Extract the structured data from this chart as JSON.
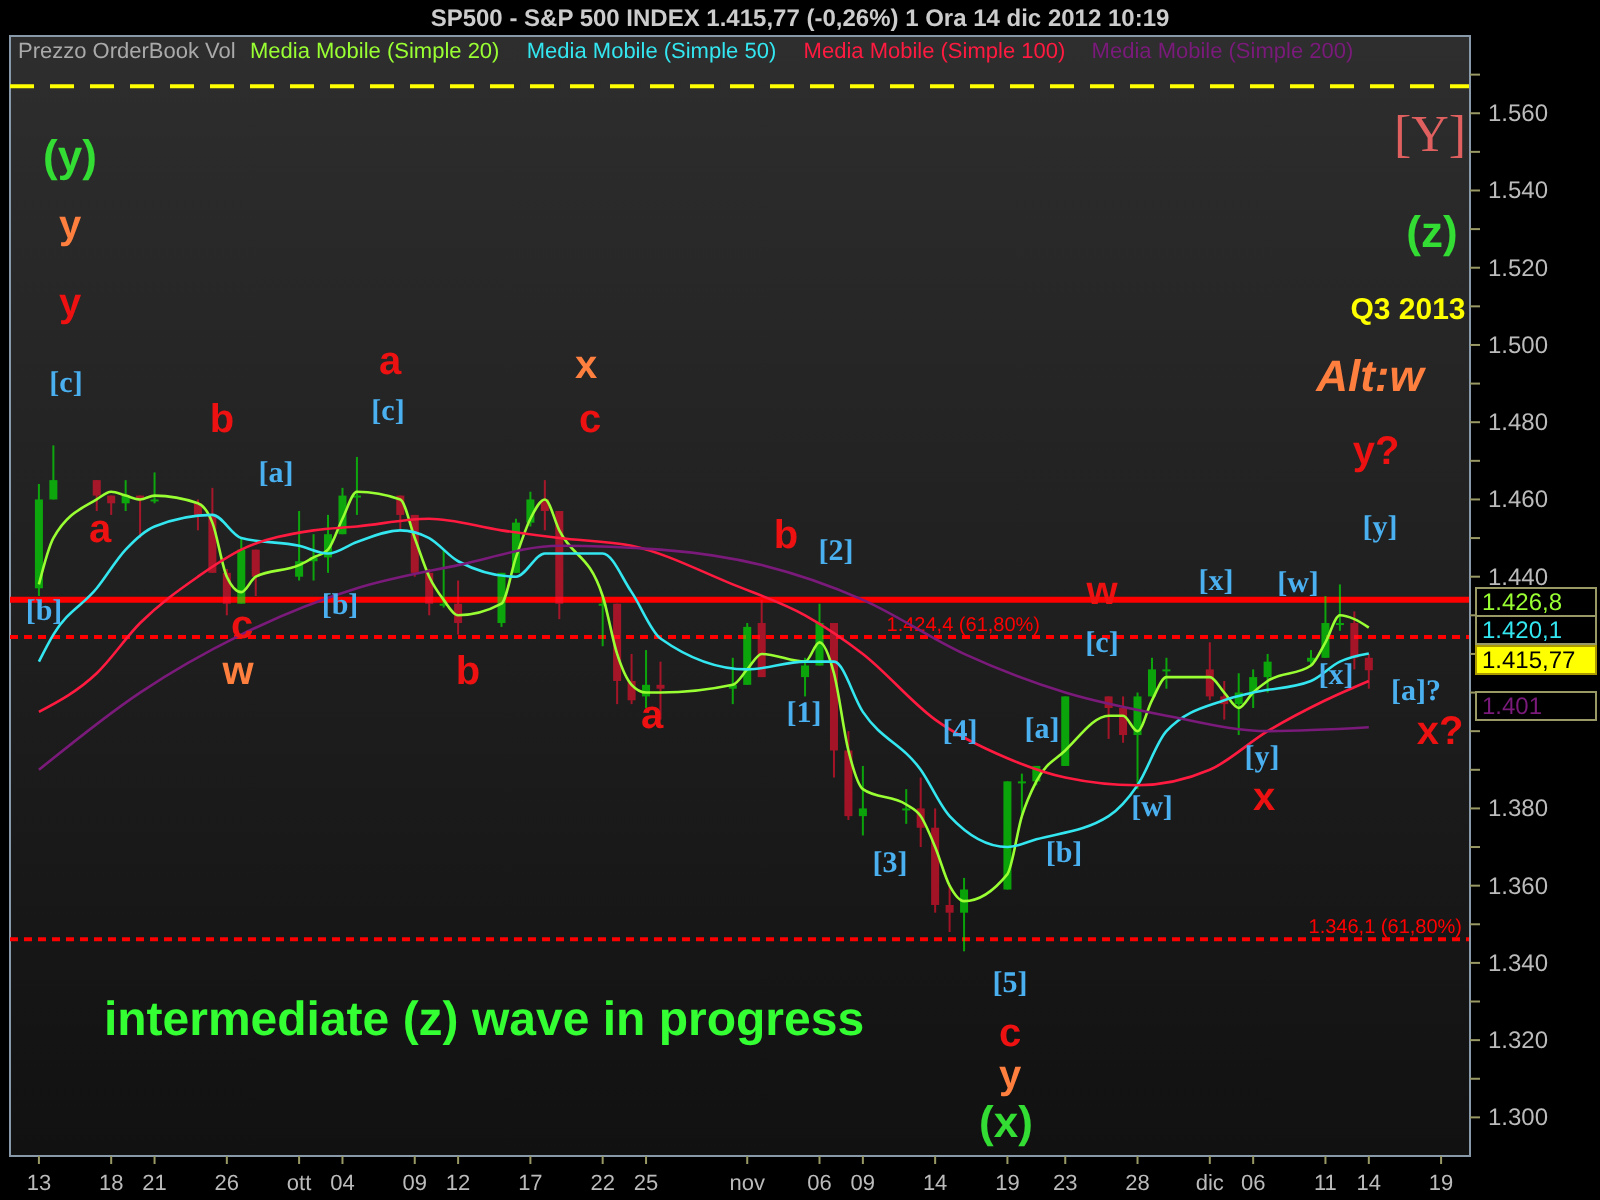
{
  "chart_data": {
    "type": "candlestick",
    "title": "SP500 - S&P 500 INDEX    1.415,77 (-0,26%)    1 Ora  14 dic 2012 10:19",
    "legend_title": "Prezzo OrderBook Vol",
    "legend": "top",
    "grid": false,
    "x": [
      "2012-09-13",
      "2012-09-14",
      "2012-09-17",
      "2012-09-18",
      "2012-09-19",
      "2012-09-20",
      "2012-09-21",
      "2012-09-24",
      "2012-09-25",
      "2012-09-26",
      "2012-09-27",
      "2012-09-28",
      "2012-10-01",
      "2012-10-02",
      "2012-10-03",
      "2012-10-04",
      "2012-10-05",
      "2012-10-08",
      "2012-10-09",
      "2012-10-10",
      "2012-10-11",
      "2012-10-12",
      "2012-10-15",
      "2012-10-16",
      "2012-10-17",
      "2012-10-18",
      "2012-10-19",
      "2012-10-22",
      "2012-10-23",
      "2012-10-24",
      "2012-10-25",
      "2012-10-26",
      "2012-10-31",
      "2012-11-01",
      "2012-11-02",
      "2012-11-05",
      "2012-11-06",
      "2012-11-07",
      "2012-11-08",
      "2012-11-09",
      "2012-11-12",
      "2012-11-13",
      "2012-11-14",
      "2012-11-15",
      "2012-11-16",
      "2012-11-19",
      "2012-11-20",
      "2012-11-21",
      "2012-11-23",
      "2012-11-26",
      "2012-11-27",
      "2012-11-28",
      "2012-11-29",
      "2012-11-30",
      "2012-12-03",
      "2012-12-04",
      "2012-12-05",
      "2012-12-06",
      "2012-12-07",
      "2012-12-10",
      "2012-12-11",
      "2012-12-12",
      "2012-12-13",
      "2012-12-14"
    ],
    "ohlc": [
      [
        1437,
        1464,
        1435,
        1460
      ],
      [
        1460,
        1474,
        1460,
        1465
      ],
      [
        1465,
        1465,
        1457,
        1461
      ],
      [
        1461,
        1461,
        1456,
        1459
      ],
      [
        1459,
        1465,
        1457,
        1461
      ],
      [
        1461,
        1461,
        1450,
        1460
      ],
      [
        1460,
        1467,
        1459,
        1460
      ],
      [
        1459,
        1460,
        1452,
        1456
      ],
      [
        1456,
        1463,
        1441,
        1441
      ],
      [
        1441,
        1442,
        1430,
        1433
      ],
      [
        1433,
        1450,
        1433,
        1447
      ],
      [
        1447,
        1447,
        1435,
        1440
      ],
      [
        1440,
        1457,
        1439,
        1444
      ],
      [
        1444,
        1451,
        1439,
        1445
      ],
      [
        1445,
        1456,
        1441,
        1451
      ],
      [
        1451,
        1463,
        1451,
        1461
      ],
      [
        1461,
        1471,
        1456,
        1461
      ],
      [
        1461,
        1461,
        1452,
        1456
      ],
      [
        1456,
        1456,
        1440,
        1441
      ],
      [
        1441,
        1442,
        1430,
        1433
      ],
      [
        1433,
        1447,
        1432,
        1433
      ],
      [
        1433,
        1439,
        1425,
        1428
      ],
      [
        1428,
        1441,
        1427,
        1441
      ],
      [
        1441,
        1455,
        1441,
        1454
      ],
      [
        1454,
        1462,
        1453,
        1460
      ],
      [
        1460,
        1465,
        1452,
        1457
      ],
      [
        1457,
        1457,
        1429,
        1433
      ],
      [
        1433,
        1435,
        1422,
        1433
      ],
      [
        1433,
        1433,
        1407,
        1413
      ],
      [
        1413,
        1420,
        1407,
        1408
      ],
      [
        1409,
        1421,
        1406,
        1412
      ],
      [
        1412,
        1418,
        1403,
        1411
      ],
      [
        1411,
        1419,
        1407,
        1412
      ],
      [
        1412,
        1428,
        1412,
        1427
      ],
      [
        1428,
        1434,
        1414,
        1414
      ],
      [
        1414,
        1419,
        1409,
        1417
      ],
      [
        1417,
        1433,
        1417,
        1428
      ],
      [
        1428,
        1428,
        1388,
        1395
      ],
      [
        1395,
        1400,
        1377,
        1378
      ],
      [
        1378,
        1391,
        1373,
        1380
      ],
      [
        1380,
        1385,
        1376,
        1380
      ],
      [
        1380,
        1388,
        1370,
        1375
      ],
      [
        1375,
        1380,
        1353,
        1355
      ],
      [
        1355,
        1360,
        1348,
        1353
      ],
      [
        1353,
        1362,
        1343,
        1359
      ],
      [
        1359,
        1387,
        1359,
        1387
      ],
      [
        1387,
        1389,
        1378,
        1387
      ],
      [
        1387,
        1391,
        1386,
        1391
      ],
      [
        1391,
        1409,
        1391,
        1409
      ],
      [
        1409,
        1409,
        1398,
        1406
      ],
      [
        1406,
        1409,
        1397,
        1399
      ],
      [
        1399,
        1410,
        1385,
        1409
      ],
      [
        1409,
        1419,
        1409,
        1416
      ],
      [
        1416,
        1419,
        1411,
        1416
      ],
      [
        1416,
        1423,
        1408,
        1409
      ],
      [
        1409,
        1413,
        1403,
        1407
      ],
      [
        1407,
        1415,
        1399,
        1410
      ],
      [
        1410,
        1416,
        1406,
        1414
      ],
      [
        1414,
        1420,
        1410,
        1418
      ],
      [
        1418,
        1421,
        1417,
        1419
      ],
      [
        1419,
        1435,
        1419,
        1428
      ],
      [
        1428,
        1438,
        1426,
        1428
      ],
      [
        1428,
        1431,
        1416,
        1419
      ],
      [
        1419,
        1420,
        1411,
        1415.77
      ]
    ],
    "series": [
      {
        "name": "Media Mobile (Simple 20)",
        "type": "line",
        "color": "#99ff33",
        "x": [
          "2012-09-13",
          "2012-09-14",
          "2012-09-17",
          "2012-09-18",
          "2012-09-19",
          "2012-09-20",
          "2012-09-21",
          "2012-09-24",
          "2012-09-25",
          "2012-09-26",
          "2012-09-27",
          "2012-09-28",
          "2012-10-01",
          "2012-10-02",
          "2012-10-03",
          "2012-10-04",
          "2012-10-05",
          "2012-10-08",
          "2012-10-09",
          "2012-10-10",
          "2012-10-11",
          "2012-10-12",
          "2012-10-15",
          "2012-10-16",
          "2012-10-17",
          "2012-10-18",
          "2012-10-19",
          "2012-10-22",
          "2012-10-23",
          "2012-10-24",
          "2012-10-25",
          "2012-10-26",
          "2012-10-31",
          "2012-11-01",
          "2012-11-02",
          "2012-11-05",
          "2012-11-06",
          "2012-11-07",
          "2012-11-08",
          "2012-11-09",
          "2012-11-12",
          "2012-11-13",
          "2012-11-14",
          "2012-11-15",
          "2012-11-16",
          "2012-11-19",
          "2012-11-20",
          "2012-11-21",
          "2012-11-23",
          "2012-11-26",
          "2012-11-27",
          "2012-11-28",
          "2012-11-29",
          "2012-11-30",
          "2012-12-03",
          "2012-12-04",
          "2012-12-05",
          "2012-12-06",
          "2012-12-07",
          "2012-12-10",
          "2012-12-11",
          "2012-12-12",
          "2012-12-13",
          "2012-12-14"
        ],
        "values": [
          1438,
          1450,
          1460,
          1462,
          1461,
          1460,
          1461,
          1459,
          1454,
          1440,
          1436,
          1440,
          1443,
          1445,
          1447,
          1455,
          1462,
          1460,
          1450,
          1440,
          1434,
          1430,
          1433,
          1445,
          1455,
          1460,
          1452,
          1435,
          1420,
          1412,
          1410,
          1410,
          1412,
          1416,
          1420,
          1418,
          1423,
          1415,
          1395,
          1385,
          1381,
          1378,
          1370,
          1360,
          1356,
          1363,
          1378,
          1387,
          1395,
          1404,
          1404,
          1400,
          1408,
          1414,
          1414,
          1410,
          1406,
          1410,
          1413,
          1417,
          1423,
          1430,
          1429,
          1426.8
        ]
      },
      {
        "name": "Media Mobile (Simple 50)",
        "type": "line",
        "color": "#33e6f0",
        "x": [
          "2012-09-13",
          "2012-09-14",
          "2012-09-17",
          "2012-09-19",
          "2012-09-21",
          "2012-09-25",
          "2012-09-27",
          "2012-10-01",
          "2012-10-03",
          "2012-10-05",
          "2012-10-08",
          "2012-10-10",
          "2012-10-12",
          "2012-10-16",
          "2012-10-18",
          "2012-10-22",
          "2012-10-24",
          "2012-10-26",
          "2012-11-01",
          "2012-11-05",
          "2012-11-07",
          "2012-11-09",
          "2012-11-13",
          "2012-11-15",
          "2012-11-19",
          "2012-11-21",
          "2012-11-26",
          "2012-11-28",
          "2012-11-30",
          "2012-12-04",
          "2012-12-06",
          "2012-12-10",
          "2012-12-12",
          "2012-12-14"
        ],
        "values": [
          1418,
          1425,
          1437,
          1447,
          1453,
          1456,
          1450,
          1448,
          1446,
          1449,
          1452,
          1450,
          1444,
          1440,
          1446,
          1446,
          1436,
          1424,
          1416,
          1418,
          1418,
          1405,
          1390,
          1378,
          1370,
          1372,
          1378,
          1386,
          1400,
          1408,
          1410,
          1413,
          1418,
          1420.1
        ]
      },
      {
        "name": "Media Mobile (Simple 100)",
        "type": "line",
        "color": "#ff1a40",
        "x": [
          "2012-09-13",
          "2012-09-17",
          "2012-09-20",
          "2012-09-24",
          "2012-09-27",
          "2012-10-02",
          "2012-10-05",
          "2012-10-10",
          "2012-10-15",
          "2012-10-19",
          "2012-10-24",
          "2012-10-31",
          "2012-11-05",
          "2012-11-09",
          "2012-11-14",
          "2012-11-19",
          "2012-11-23",
          "2012-11-28",
          "2012-12-03",
          "2012-12-07",
          "2012-12-11",
          "2012-12-14"
        ],
        "values": [
          1405,
          1415,
          1428,
          1440,
          1447,
          1452,
          1453,
          1455,
          1452,
          1450,
          1448,
          1438,
          1430,
          1420,
          1403,
          1393,
          1388,
          1386,
          1390,
          1400,
          1408,
          1413
        ]
      },
      {
        "name": "Media Mobile (Simple 200)",
        "type": "line",
        "color": "#7a1a7a",
        "x": [
          "2012-09-13",
          "2012-09-20",
          "2012-09-27",
          "2012-10-05",
          "2012-10-12",
          "2012-10-19",
          "2012-10-26",
          "2012-11-02",
          "2012-11-09",
          "2012-11-16",
          "2012-11-23",
          "2012-11-30",
          "2012-12-07",
          "2012-12-14"
        ],
        "values": [
          1390,
          1410,
          1425,
          1437,
          1443,
          1448,
          1447,
          1443,
          1434,
          1420,
          1410,
          1404,
          1400,
          1401
        ]
      }
    ],
    "xlim": [
      "2012-09-11",
      "2012-12-21"
    ],
    "xticks": [
      {
        "value": "2012-09-13",
        "label": "13"
      },
      {
        "value": "2012-09-18",
        "label": "18"
      },
      {
        "value": "2012-09-21",
        "label": "21"
      },
      {
        "value": "2012-09-26",
        "label": "26"
      },
      {
        "value": "2012-10-01",
        "label": "ott"
      },
      {
        "value": "2012-10-04",
        "label": "04"
      },
      {
        "value": "2012-10-09",
        "label": "09"
      },
      {
        "value": "2012-10-12",
        "label": "12"
      },
      {
        "value": "2012-10-17",
        "label": "17"
      },
      {
        "value": "2012-10-22",
        "label": "22"
      },
      {
        "value": "2012-10-25",
        "label": "25"
      },
      {
        "value": "2012-11-01",
        "label": "nov"
      },
      {
        "value": "2012-11-06",
        "label": "06"
      },
      {
        "value": "2012-11-09",
        "label": "09"
      },
      {
        "value": "2012-11-14",
        "label": "14"
      },
      {
        "value": "2012-11-19",
        "label": "19"
      },
      {
        "value": "2012-11-23",
        "label": "23"
      },
      {
        "value": "2012-11-28",
        "label": "28"
      },
      {
        "value": "2012-12-03",
        "label": "dic"
      },
      {
        "value": "2012-12-06",
        "label": "06"
      },
      {
        "value": "2012-12-11",
        "label": "11"
      },
      {
        "value": "2012-12-14",
        "label": "14"
      },
      {
        "value": "2012-12-19",
        "label": "19"
      }
    ],
    "ylim": [
      1290,
      1580
    ],
    "yticks": [
      {
        "value": 1300,
        "label": "1.300"
      },
      {
        "value": 1310,
        "label": null
      },
      {
        "value": 1320,
        "label": "1.320"
      },
      {
        "value": 1330,
        "label": null
      },
      {
        "value": 1340,
        "label": "1.340"
      },
      {
        "value": 1350,
        "label": null
      },
      {
        "value": 1360,
        "label": "1.360"
      },
      {
        "value": 1370,
        "label": null
      },
      {
        "value": 1380,
        "label": "1.380"
      },
      {
        "value": 1390,
        "label": null
      },
      {
        "value": 1400,
        "label": null
      },
      {
        "value": 1410,
        "label": null
      },
      {
        "value": 1420,
        "label": null
      },
      {
        "value": 1430,
        "label": null
      },
      {
        "value": 1440,
        "label": "1.440"
      },
      {
        "value": 1450,
        "label": null
      },
      {
        "value": 1460,
        "label": "1.460"
      },
      {
        "value": 1470,
        "label": null
      },
      {
        "value": 1480,
        "label": "1.480"
      },
      {
        "value": 1490,
        "label": null
      },
      {
        "value": 1500,
        "label": "1.500"
      },
      {
        "value": 1510,
        "label": null
      },
      {
        "value": 1520,
        "label": "1.520"
      },
      {
        "value": 1530,
        "label": null
      },
      {
        "value": 1540,
        "label": "1.540"
      },
      {
        "value": 1550,
        "label": null
      },
      {
        "value": 1560,
        "label": "1.560"
      },
      {
        "value": 1570,
        "label": null
      }
    ],
    "ref_lines": [
      {
        "axis": "y",
        "value": 1567,
        "color": "#ffff00",
        "line_style": "dashed"
      },
      {
        "axis": "y",
        "value": 1434,
        "color": "#ff0000",
        "line_style": "solid"
      },
      {
        "axis": "y",
        "value": 1424.4,
        "label": "1.424,4 (61,80%)",
        "color": "#ff0000",
        "line_style": "dashed"
      },
      {
        "axis": "y",
        "value": 1346.1,
        "label": "1.346,1 (61,80%)",
        "color": "#ff0000",
        "line_style": "dashed"
      }
    ],
    "annotations": [
      "(y)",
      "y",
      "y",
      "[c]",
      "a",
      "b",
      "[a]",
      "[b]",
      "c",
      "w",
      "a",
      "[c]",
      "[b]",
      "b",
      "x",
      "c",
      "a",
      "b",
      "[2]",
      "[1]",
      "[3]",
      "[4]",
      "[a]",
      "[b]",
      "[c]",
      "[5]",
      "c",
      "y",
      "(x)",
      "w",
      "[x]",
      "[w]",
      "[x]",
      "[y]",
      "x",
      "[w]",
      "[y]",
      "y?",
      "Alt:w",
      "Q3 2013",
      "(z)",
      "[Y]",
      "[a]?",
      "x?",
      "intermediate (z) wave in progress",
      "1.426,8",
      "1.420,1",
      "1.415,77",
      "1.401"
    ]
  }
}
